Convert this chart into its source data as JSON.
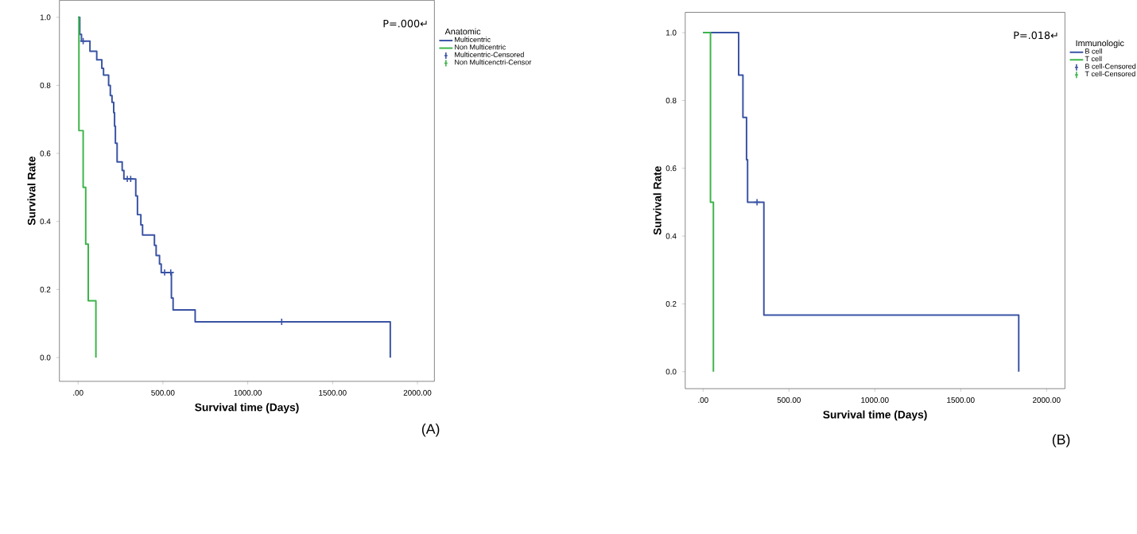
{
  "chart_data": [
    {
      "type": "step",
      "xlabel": "Survival time (Days)",
      "ylabel": "Survival Rate",
      "legend_title": "Anatomic",
      "legend": "right",
      "grid": false,
      "xlim": [
        -110,
        2100
      ],
      "ylim": [
        -0.07,
        1.05
      ],
      "xticks": [
        {
          "value": 0,
          "label": ".00"
        },
        {
          "value": 500,
          "label": "500.00"
        },
        {
          "value": 1000,
          "label": "1000.00"
        },
        {
          "value": 1500,
          "label": "1500.00"
        },
        {
          "value": 2000,
          "label": "2000.00"
        }
      ],
      "yticks": [
        {
          "value": 0,
          "label": "0.0"
        },
        {
          "value": 0.2,
          "label": "0.2"
        },
        {
          "value": 0.4,
          "label": "0.4"
        },
        {
          "value": 0.6,
          "label": "0.6"
        },
        {
          "value": 0.8,
          "label": "0.8"
        },
        {
          "value": 1,
          "label": "1.0"
        }
      ],
      "annotations": [
        "P=.000↵",
        "(A)"
      ],
      "series": [
        {
          "name": "Multicentric",
          "color": "#3953a4",
          "x": [
            0,
            10,
            20,
            70,
            110,
            140,
            150,
            180,
            190,
            200,
            210,
            215,
            220,
            230,
            260,
            270,
            340,
            350,
            370,
            380,
            450,
            460,
            480,
            490,
            550,
            560,
            690,
            1840
          ],
          "values": [
            1.0,
            0.95,
            0.93,
            0.9,
            0.875,
            0.85,
            0.83,
            0.8,
            0.77,
            0.75,
            0.72,
            0.68,
            0.63,
            0.575,
            0.55,
            0.525,
            0.475,
            0.42,
            0.39,
            0.36,
            0.33,
            0.3,
            0.275,
            0.25,
            0.175,
            0.14,
            0.105,
            0.0
          ]
        },
        {
          "name": "Non Multicentric",
          "color": "#3cb44a",
          "x": [
            0,
            5,
            30,
            45,
            60,
            105
          ],
          "values": [
            1.0,
            0.667,
            0.5,
            0.333,
            0.167,
            0.0
          ]
        },
        {
          "name": "Multicentric-Censored",
          "type": "scatter",
          "marker": "cross",
          "color": "#3953a4",
          "x": [
            30,
            290,
            310,
            510,
            546,
            1200
          ],
          "values": [
            0.93,
            0.525,
            0.525,
            0.25,
            0.25,
            0.105
          ]
        },
        {
          "name": "Non Multicenctri-Censor",
          "type": "scatter",
          "marker": "cross",
          "color": "#3cb44a"
        }
      ]
    },
    {
      "type": "step",
      "xlabel": "Survival time (Days)",
      "ylabel": "Survival Rate",
      "legend_title": "Immunologic",
      "legend": "right",
      "grid": false,
      "xlim": [
        -104,
        2107
      ],
      "ylim": [
        -0.05,
        1.06
      ],
      "xticks": [
        {
          "value": 0,
          "label": ".00"
        },
        {
          "value": 500,
          "label": "500.00"
        },
        {
          "value": 1000,
          "label": "1000.00"
        },
        {
          "value": 1500,
          "label": "1500.00"
        },
        {
          "value": 2000,
          "label": "2000.00"
        }
      ],
      "yticks": [
        {
          "value": 0,
          "label": "0.0"
        },
        {
          "value": 0.2,
          "label": "0.2"
        },
        {
          "value": 0.4,
          "label": "0.4"
        },
        {
          "value": 0.6,
          "label": "0.6"
        },
        {
          "value": 0.8,
          "label": "0.8"
        },
        {
          "value": 1,
          "label": "1.0"
        }
      ],
      "annotations": [
        "P=.018↵",
        "(B)"
      ],
      "series": [
        {
          "name": "B cell",
          "color": "#3953a4",
          "x": [
            0,
            207,
            232,
            253,
            259,
            354,
            1838
          ],
          "values": [
            1.0,
            0.875,
            0.75,
            0.625,
            0.5,
            0.167,
            0.0
          ]
        },
        {
          "name": "T cell",
          "color": "#3cb44a",
          "x": [
            0,
            43,
            60
          ],
          "values": [
            1.0,
            0.5,
            0.0
          ]
        },
        {
          "name": "B cell-Censored",
          "type": "scatter",
          "marker": "cross",
          "color": "#3953a4",
          "x": [
            314
          ],
          "values": [
            0.5
          ]
        },
        {
          "name": "T cell-Censored",
          "type": "scatter",
          "marker": "cross",
          "color": "#3cb44a"
        }
      ]
    }
  ]
}
